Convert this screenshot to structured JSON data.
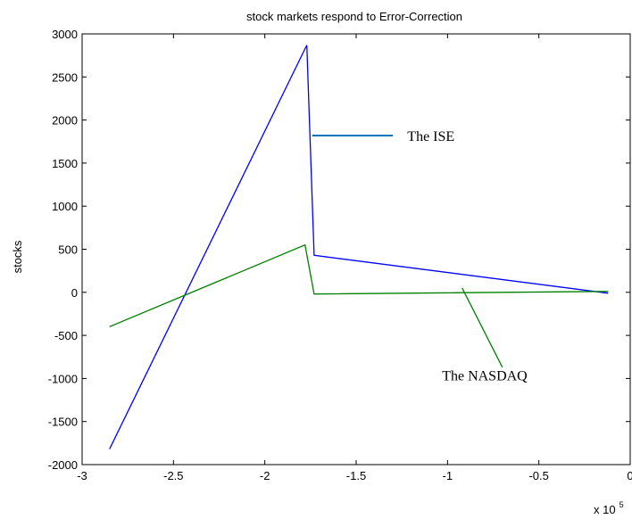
{
  "chart_data": {
    "type": "line",
    "title": "stock markets respond to Error-Correction",
    "xlabel": "",
    "ylabel": "stocks",
    "x_exponent": {
      "base": "x 10",
      "power": "5"
    },
    "xlim": [
      -3,
      0
    ],
    "ylim": [
      -2000,
      3000
    ],
    "xticks": [
      -3,
      -2.5,
      -2,
      -1.5,
      -1,
      -0.5,
      0
    ],
    "xtick_labels": [
      "-3",
      "-2.5",
      "-2",
      "-1.5",
      "-1",
      "-0.5",
      "0"
    ],
    "yticks": [
      -2000,
      -1500,
      -1000,
      -500,
      0,
      500,
      1000,
      1500,
      2000,
      2500,
      3000
    ],
    "ytick_labels": [
      "-2000",
      "-1500",
      "-1000",
      "-500",
      "0",
      "500",
      "1000",
      "1500",
      "2000",
      "2500",
      "3000"
    ],
    "grid": false,
    "series": [
      {
        "color": "#0000ff",
        "x": [
          -2.85,
          -1.77,
          -1.73,
          -0.12
        ],
        "y": [
          -1820,
          2870,
          430,
          -10
        ]
      },
      {
        "color": "#008000",
        "x": [
          -2.85,
          -1.78,
          -1.73,
          -0.12
        ],
        "y": [
          -400,
          550,
          -20,
          10
        ]
      }
    ],
    "annotations": [
      {
        "text": "The ISE",
        "line_color": "#0072bd",
        "line_x": [
          -1.74,
          -1.3
        ],
        "line_y": [
          1820,
          1820
        ],
        "text_x": -1.22,
        "text_y": 1820
      },
      {
        "text": "The NASDAQ",
        "line_color": "#008000",
        "line_x": [
          -0.92,
          -0.7
        ],
        "line_y": [
          50,
          -870
        ],
        "text_x": -1.03,
        "text_y": -960
      }
    ]
  }
}
